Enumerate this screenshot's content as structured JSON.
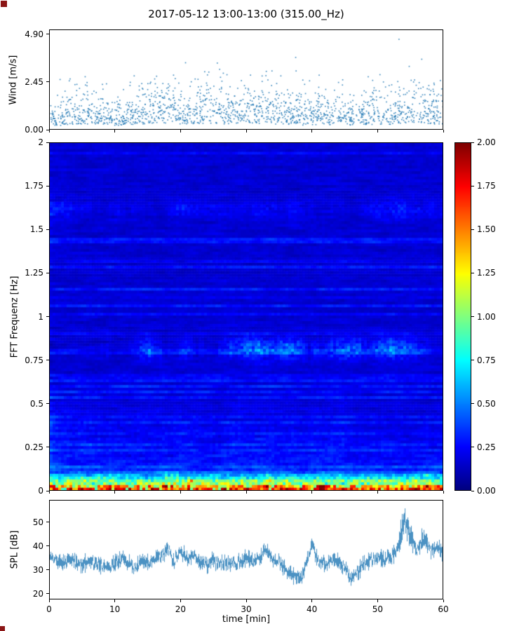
{
  "figure": {
    "title": "2017-05-12 13:00-13:00 (315.00_Hz)",
    "background": "#ffffff",
    "accent_color": "#1f77b4",
    "corner_marker_color": "#8b1515"
  },
  "chart_data": [
    {
      "id": "wind",
      "type": "scatter",
      "ylabel": "Wind [m/s]",
      "xlabel": "",
      "xlim": [
        0,
        60
      ],
      "ylim": [
        0,
        5.15
      ],
      "yticks": [
        0.0,
        2.45,
        4.9
      ],
      "ytick_labels": [
        "0.00",
        "2.45",
        "4.90"
      ],
      "xticks": [
        0,
        10,
        20,
        30,
        40,
        50,
        60
      ],
      "xtick_labels": [
        "",
        "",
        "",
        "",
        "",
        "",
        ""
      ],
      "marker_color": "#1f77b4",
      "point_count": 1700,
      "seed": 42,
      "gust_prob": 0.015,
      "value_max": 4.85,
      "envelope": [
        0.8,
        0.9,
        1.0,
        1.2,
        0.9,
        0.8,
        0.9,
        1.1,
        1.4,
        1.3,
        1.1,
        1.2,
        1.3,
        1.2,
        1.1,
        1.3,
        1.2,
        1.1,
        1.0,
        0.9,
        1.0,
        1.1,
        0.9,
        0.8,
        0.9,
        1.0,
        1.1,
        1.3,
        1.4,
        1.2,
        1.0
      ]
    },
    {
      "id": "spectrogram",
      "type": "heatmap",
      "ylabel": "FFT Frequenz [Hz]",
      "xlabel": "",
      "xlim": [
        0,
        60
      ],
      "ylim": [
        0,
        2
      ],
      "yticks": [
        0,
        0.25,
        0.5,
        0.75,
        1,
        1.25,
        1.5,
        1.75,
        2
      ],
      "ytick_labels": [
        "0",
        "0.25",
        "0.5",
        "0.75",
        "1",
        "1.25",
        "1.5",
        "1.75",
        "2"
      ],
      "xticks": [
        0,
        10,
        20,
        30,
        40,
        50,
        60
      ],
      "xtick_labels": [
        "",
        "",
        "",
        "",
        "",
        "",
        ""
      ],
      "colormap": "jet",
      "vmin": 0,
      "vmax": 2,
      "time_bins": 140,
      "freq_bins": 125,
      "seed": 7,
      "base_level": 0.14,
      "bands": [
        {
          "center": 0.82,
          "width": 0.045,
          "amplitude": 0.5
        },
        {
          "center": 0.3,
          "width": 0.15,
          "amplitude": 0.12
        },
        {
          "center": 1.62,
          "width": 0.04,
          "amplitude": 0.25
        }
      ],
      "column_streaks": [
        17.5,
        19,
        21.5,
        33,
        41,
        55.5,
        57.5
      ],
      "colorbar": {
        "ticks": [
          0,
          0.25,
          0.5,
          0.75,
          1,
          1.25,
          1.5,
          1.75,
          2
        ],
        "tick_labels": [
          "0.00",
          "0.25",
          "0.50",
          "0.75",
          "1.00",
          "1.25",
          "1.50",
          "1.75",
          "2.00"
        ],
        "vmin": 0,
        "vmax": 2
      }
    },
    {
      "id": "spl",
      "type": "line",
      "ylabel": "SPL [dB]",
      "xlabel": "time [min]",
      "xlim": [
        0,
        60
      ],
      "ylim": [
        17.6,
        59.4
      ],
      "yticks": [
        20,
        30,
        40,
        50
      ],
      "ytick_labels": [
        "20",
        "30",
        "40",
        "50"
      ],
      "xticks": [
        0,
        10,
        20,
        30,
        40,
        50,
        60
      ],
      "xtick_labels": [
        "0",
        "10",
        "20",
        "30",
        "40",
        "50",
        "60"
      ],
      "line_color": "#1f77b4",
      "seed": 11,
      "noise_db": 2.2,
      "anchors_t_step": 1,
      "anchors_db": [
        35,
        34,
        33,
        35,
        33,
        32,
        34,
        33,
        31,
        32,
        33,
        35,
        33,
        31,
        34,
        33,
        35,
        36,
        39,
        34,
        38,
        35,
        36,
        33,
        32,
        34,
        33,
        32,
        34,
        33,
        35,
        33,
        34,
        39,
        34,
        33,
        31,
        27,
        26,
        31,
        41,
        33,
        32,
        34,
        33,
        31,
        26,
        29,
        33,
        34,
        35,
        34,
        35,
        38,
        51,
        46,
        38,
        44,
        38,
        40,
        37
      ]
    }
  ]
}
